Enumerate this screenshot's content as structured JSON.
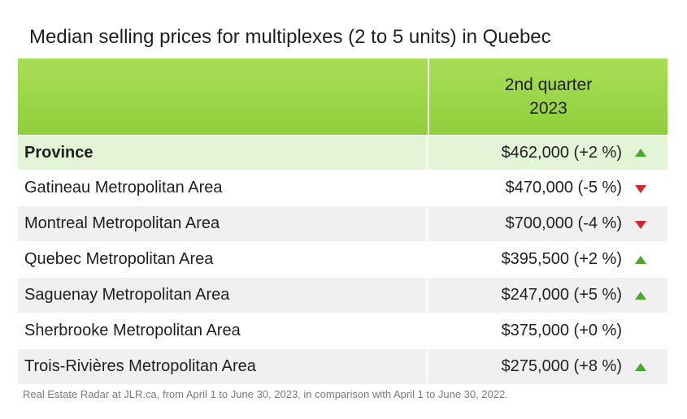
{
  "title": "Median selling prices for multiplexes (2 to 5 units) in Quebec",
  "header": {
    "col1": "",
    "col2_line1": "2nd quarter",
    "col2_line2": "2023"
  },
  "colors": {
    "header_green": "#96d444",
    "province_bg": "#e3f4d7",
    "alt_row_bg": "#f0f0f0",
    "up": "#4aa82a",
    "down": "#d6262a"
  },
  "chart_data": {
    "type": "table",
    "title": "Median selling prices for multiplexes (2 to 5 units) in Quebec",
    "columns": [
      "",
      "2nd quarter 2023"
    ],
    "rows": [
      {
        "name": "Province",
        "value": "$462,000 (+2 %)",
        "price": 462000,
        "change_pct": 2,
        "trend": "up"
      },
      {
        "name": "Gatineau Metropolitan Area",
        "value": "$470,000 (-5 %)",
        "price": 470000,
        "change_pct": -5,
        "trend": "down"
      },
      {
        "name": "Montreal Metropolitan Area",
        "value": "$700,000 (-4 %)",
        "price": 700000,
        "change_pct": -4,
        "trend": "down"
      },
      {
        "name": "Quebec Metropolitan Area",
        "value": "$395,500 (+2 %)",
        "price": 395500,
        "change_pct": 2,
        "trend": "up"
      },
      {
        "name": "Saguenay Metropolitan Area",
        "value": "$247,000 (+5 %)",
        "price": 247000,
        "change_pct": 5,
        "trend": "up"
      },
      {
        "name": "Sherbrooke Metropolitan Area",
        "value": "$375,000 (+0 %)",
        "price": 375000,
        "change_pct": 0,
        "trend": "none"
      },
      {
        "name": "Trois-Rivières Metropolitan Area",
        "value": "$275,000 (+8 %)",
        "price": 275000,
        "change_pct": 8,
        "trend": "up"
      }
    ]
  },
  "source": "Real Estate Radar at JLR.ca, from April 1 to June 30, 2023, in comparison with April 1 to June 30, 2022."
}
